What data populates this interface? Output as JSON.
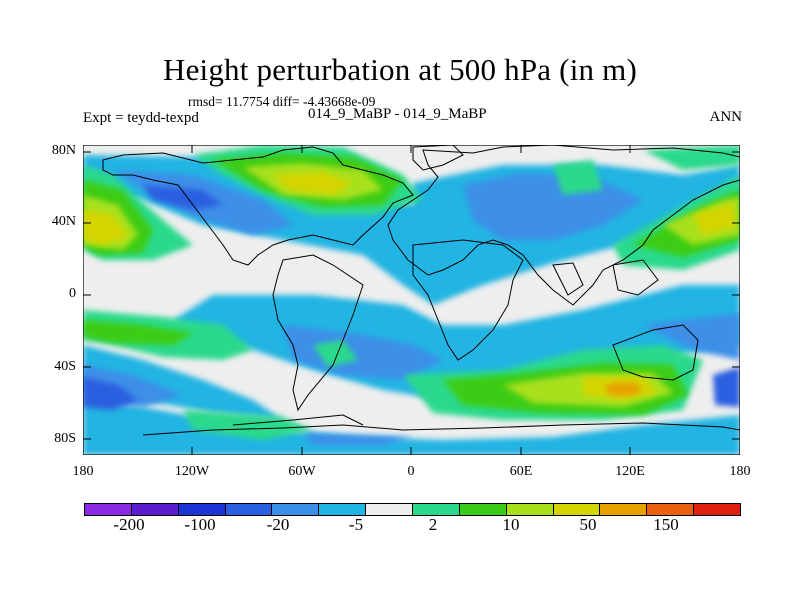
{
  "title": "Height perturbation at 500 hPa (in m)",
  "stats": "rmsd= 11.7754 diff= -4.43668e-09",
  "experiment": "Expt = teydd-texpd",
  "comparison": "014_9_MaBP - 014_9_MaBP",
  "period": "ANN",
  "lat_labels": [
    "80N",
    "40N",
    "0",
    "40S",
    "80S"
  ],
  "lon_labels": [
    "180",
    "120W",
    "60W",
    "0",
    "60E",
    "120E",
    "180"
  ],
  "colorbar": {
    "colors": [
      "#8a2be2",
      "#5a1ed0",
      "#1a36d6",
      "#2a5fe0",
      "#3c8fe8",
      "#20b4e2",
      "#eeeeee",
      "#2cd98c",
      "#3ccc18",
      "#a8e01a",
      "#d4d400",
      "#e8a200",
      "#e86010",
      "#e02010"
    ],
    "labels": [
      "-200",
      "-100",
      "-20",
      "-5",
      "2",
      "10",
      "50",
      "150"
    ]
  },
  "chart_data": {
    "type": "heatmap",
    "title": "Height perturbation at 500 hPa (in m)",
    "x_range": [
      -180,
      180
    ],
    "y_range": [
      -90,
      90
    ],
    "xticks": [
      "180",
      "120W",
      "60W",
      "0",
      "60E",
      "120E",
      "180"
    ],
    "yticks": [
      "80N",
      "40N",
      "0",
      "40S",
      "80S"
    ],
    "contour_levels": [
      -200,
      -150,
      -100,
      -50,
      -20,
      -10,
      -5,
      -2,
      2,
      5,
      10,
      20,
      50,
      100,
      150,
      200
    ]
  }
}
